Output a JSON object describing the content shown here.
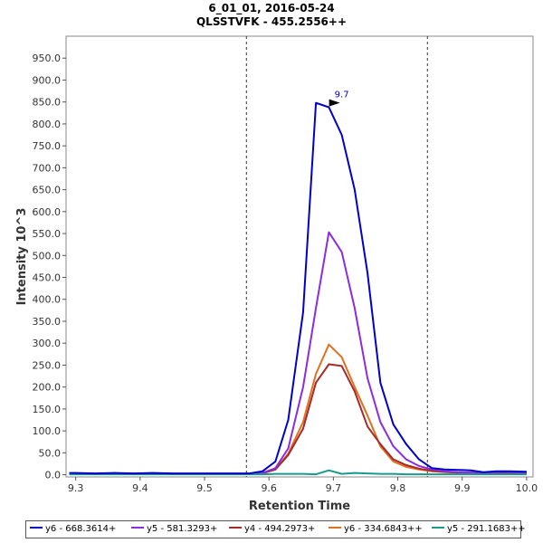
{
  "header": {
    "title": "6_01_01, 2016-05-24",
    "subtitle": "QLSSTVFK - 455.2556++"
  },
  "chart_data": {
    "type": "line",
    "xlabel": "Retention Time",
    "ylabel": "Intensity 10^3",
    "xlim": [
      9.285,
      10.01
    ],
    "ylim": [
      -5,
      1000
    ],
    "x_ticks": [
      "9.3",
      "9.4",
      "9.5",
      "9.6",
      "9.7",
      "9.8",
      "9.9",
      "10.0"
    ],
    "x_tick_values": [
      9.3,
      9.4,
      9.5,
      9.6,
      9.7,
      9.8,
      9.9,
      10.0
    ],
    "y_ticks": [
      "0.0",
      "50.0",
      "100.0",
      "150.0",
      "200.0",
      "250.0",
      "300.0",
      "350.0",
      "400.0",
      "450.0",
      "500.0",
      "550.0",
      "600.0",
      "650.0",
      "700.0",
      "750.0",
      "800.0",
      "850.0",
      "900.0",
      "950.0"
    ],
    "y_tick_values": [
      0,
      50,
      100,
      150,
      200,
      250,
      300,
      350,
      400,
      450,
      500,
      550,
      600,
      650,
      700,
      750,
      800,
      850,
      900,
      950
    ],
    "boundaries": [
      9.565,
      9.846
    ],
    "peak_annotation": {
      "label": "9.7",
      "x": 9.713,
      "y": 848
    },
    "grid": false,
    "legend_position": "bottom",
    "series": [
      {
        "name": "y6 - 668.3614+",
        "color": "#0000cc",
        "x": [
          9.29,
          9.3,
          9.33,
          9.36,
          9.39,
          9.42,
          9.45,
          9.48,
          9.51,
          9.54,
          9.57,
          9.59,
          9.61,
          9.63,
          9.653,
          9.673,
          9.693,
          9.713,
          9.733,
          9.753,
          9.773,
          9.793,
          9.813,
          9.833,
          9.853,
          9.873,
          9.893,
          9.913,
          9.933,
          9.953,
          9.973,
          10.0
        ],
        "y": [
          4,
          4,
          3,
          4,
          3,
          4,
          3,
          3,
          3,
          3,
          3,
          8,
          30,
          125,
          370,
          848,
          838,
          775,
          650,
          460,
          210,
          115,
          70,
          35,
          15,
          12,
          11,
          10,
          6,
          8,
          8,
          7
        ]
      },
      {
        "name": "y5 - 581.3293+",
        "color": "#8b2be2",
        "x": [
          9.29,
          9.33,
          9.39,
          9.45,
          9.51,
          9.57,
          9.59,
          9.61,
          9.63,
          9.653,
          9.673,
          9.693,
          9.713,
          9.733,
          9.753,
          9.773,
          9.793,
          9.813,
          9.833,
          9.853,
          9.873,
          9.893,
          9.913,
          9.933,
          9.953,
          9.973,
          10.0
        ],
        "y": [
          2,
          2,
          2,
          2,
          2,
          2,
          4,
          15,
          60,
          200,
          380,
          553,
          508,
          380,
          220,
          120,
          65,
          35,
          20,
          12,
          8,
          6,
          5,
          5,
          6,
          6,
          5
        ]
      },
      {
        "name": "y4 - 494.2973+",
        "color": "#a52a2a",
        "x": [
          9.29,
          9.33,
          9.39,
          9.45,
          9.51,
          9.57,
          9.59,
          9.61,
          9.63,
          9.653,
          9.673,
          9.693,
          9.713,
          9.733,
          9.753,
          9.773,
          9.793,
          9.813,
          9.833,
          9.853,
          9.873,
          9.893,
          9.913,
          9.933,
          9.953,
          9.973,
          10.0
        ],
        "y": [
          2,
          2,
          2,
          2,
          2,
          2,
          3,
          12,
          45,
          105,
          210,
          252,
          248,
          190,
          110,
          70,
          35,
          22,
          14,
          9,
          7,
          5,
          5,
          4,
          4,
          4,
          4
        ]
      },
      {
        "name": "y6 - 334.6843++",
        "color": "#e07020",
        "x": [
          9.29,
          9.33,
          9.39,
          9.45,
          9.51,
          9.57,
          9.59,
          9.61,
          9.63,
          9.653,
          9.673,
          9.693,
          9.713,
          9.733,
          9.753,
          9.773,
          9.793,
          9.813,
          9.833,
          9.853,
          9.873,
          9.893,
          9.913,
          9.933,
          9.953,
          9.973,
          10.0
        ],
        "y": [
          2,
          2,
          2,
          2,
          2,
          2,
          4,
          12,
          48,
          120,
          230,
          297,
          268,
          200,
          135,
          65,
          30,
          18,
          12,
          8,
          6,
          5,
          5,
          4,
          4,
          4,
          4
        ]
      },
      {
        "name": "y5 - 291.1683++",
        "color": "#1a9a8a",
        "x": [
          9.29,
          9.33,
          9.39,
          9.45,
          9.51,
          9.57,
          9.59,
          9.61,
          9.63,
          9.653,
          9.673,
          9.693,
          9.713,
          9.733,
          9.753,
          9.773,
          9.793,
          9.813,
          9.833,
          9.853,
          9.873,
          9.893,
          9.913,
          9.933,
          9.953,
          9.973,
          10.0
        ],
        "y": [
          1,
          1,
          1,
          1,
          1,
          1,
          1,
          2,
          2,
          2,
          1,
          10,
          2,
          4,
          3,
          2,
          2,
          1,
          1,
          1,
          1,
          1,
          1,
          1,
          1,
          1,
          1
        ]
      }
    ]
  }
}
